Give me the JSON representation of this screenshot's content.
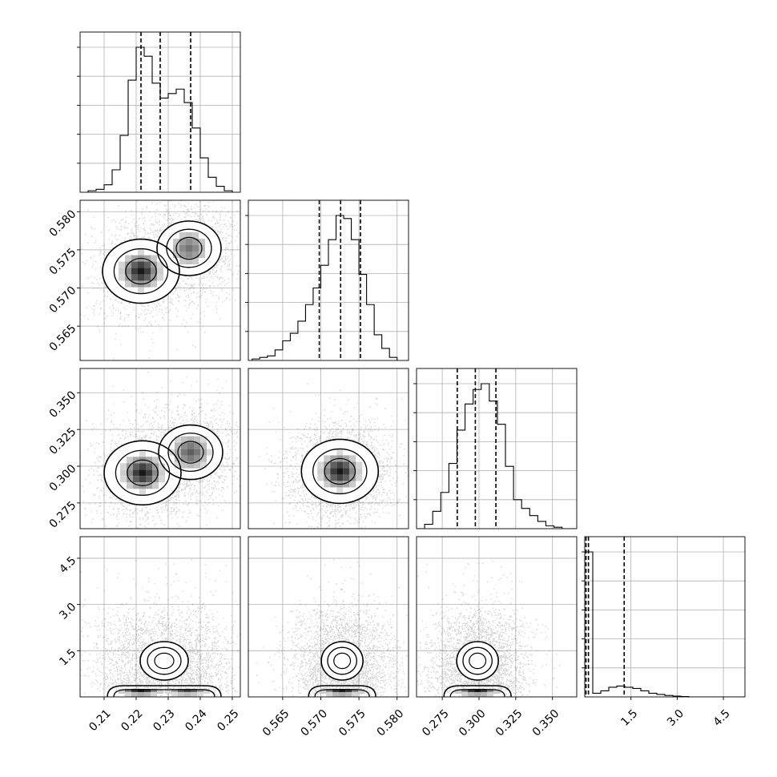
{
  "chart_data": {
    "type": "corner",
    "parameters": [
      {
        "index": 0,
        "range": [
          0.2025,
          0.2525
        ],
        "ticks": [
          0.21,
          0.22,
          0.23,
          0.24,
          0.25
        ],
        "tick_labels": [
          "0.21",
          "0.22",
          "0.23",
          "0.24",
          "0.25"
        ],
        "quantiles": [
          0.2215,
          0.2275,
          0.237
        ]
      },
      {
        "index": 1,
        "range": [
          0.5605,
          0.5815
        ],
        "ticks": [
          0.565,
          0.57,
          0.575,
          0.58
        ],
        "tick_labels": [
          "0.565",
          "0.570",
          "0.575",
          "0.580"
        ],
        "quantiles": [
          0.5698,
          0.5726,
          0.5752
        ]
      },
      {
        "index": 2,
        "range": [
          0.2575,
          0.3665
        ],
        "ticks": [
          0.275,
          0.3,
          0.325,
          0.35
        ],
        "tick_labels": [
          "0.275",
          "0.300",
          "0.325",
          "0.350"
        ],
        "quantiles": [
          0.2852,
          0.2975,
          0.3115
        ]
      },
      {
        "index": 3,
        "range": [
          0.0,
          5.2
        ],
        "ticks": [
          1.5,
          3.0,
          4.5
        ],
        "tick_labels": [
          "1.5",
          "3.0",
          "4.5"
        ],
        "quantiles": [
          0.04,
          0.12,
          1.28
        ]
      }
    ],
    "histograms": [
      {
        "param": 0,
        "bin_edges": [
          0.205,
          0.2075,
          0.21,
          0.2125,
          0.215,
          0.2175,
          0.22,
          0.2225,
          0.225,
          0.2275,
          0.23,
          0.2325,
          0.235,
          0.2375,
          0.24,
          0.2425,
          0.245,
          0.2475,
          0.25
        ],
        "counts": [
          1,
          2,
          5,
          15,
          38,
          75,
          97,
          91,
          73,
          63,
          66,
          69,
          60,
          43,
          23,
          10,
          4,
          1
        ]
      },
      {
        "param": 1,
        "bin_edges": [
          0.561,
          0.562,
          0.563,
          0.564,
          0.565,
          0.566,
          0.567,
          0.568,
          0.569,
          0.57,
          0.571,
          0.572,
          0.573,
          0.574,
          0.575,
          0.576,
          0.577,
          0.578,
          0.579,
          0.58
        ],
        "counts": [
          1,
          2,
          3,
          7,
          13,
          18,
          26,
          37,
          48,
          63,
          80,
          96,
          94,
          80,
          57,
          37,
          17,
          8,
          2
        ]
      },
      {
        "param": 2,
        "bin_edges": [
          0.2575,
          0.263,
          0.2685,
          0.274,
          0.2795,
          0.285,
          0.2905,
          0.296,
          0.3015,
          0.307,
          0.3125,
          0.318,
          0.3235,
          0.329,
          0.3345,
          0.34,
          0.3455,
          0.351,
          0.3565,
          0.362,
          0.3665
        ],
        "counts": [
          0,
          3,
          12,
          25,
          45,
          68,
          86,
          96,
          100,
          88,
          72,
          43,
          20,
          14,
          9,
          5,
          2,
          1,
          0,
          0
        ]
      },
      {
        "param": 3,
        "bin_edges": [
          0.0,
          0.26,
          0.52,
          0.78,
          1.04,
          1.3,
          1.56,
          1.82,
          2.08,
          2.34,
          2.6,
          2.86,
          3.12,
          3.38,
          3.64,
          3.9,
          4.16,
          4.42,
          4.68,
          4.94,
          5.2
        ],
        "counts": [
          120,
          3,
          5,
          8,
          9,
          8,
          7,
          5,
          3,
          2,
          1.2,
          0.6,
          0.3,
          0,
          0,
          0,
          0,
          0,
          0,
          0
        ]
      }
    ],
    "joint_modes": [
      {
        "x_param": 0,
        "y_param": 1,
        "modes": [
          [
            0.2215,
            0.5722,
            1.0
          ],
          [
            0.2365,
            0.5752,
            0.6
          ]
        ]
      },
      {
        "x_param": 0,
        "y_param": 2,
        "modes": [
          [
            0.222,
            0.2955,
            1.0
          ],
          [
            0.237,
            0.3095,
            0.7
          ]
        ]
      },
      {
        "x_param": 1,
        "y_param": 2,
        "modes": [
          [
            0.5725,
            0.2965,
            1.0
          ]
        ]
      },
      {
        "x_param": 0,
        "y_param": 3,
        "modes": [
          [
            0.2215,
            0.1,
            1.0
          ],
          [
            0.236,
            0.1,
            0.8
          ]
        ]
      },
      {
        "x_param": 1,
        "y_param": 3,
        "modes": [
          [
            0.5728,
            0.1,
            1.0
          ]
        ]
      },
      {
        "x_param": 2,
        "y_param": 3,
        "modes": [
          [
            0.299,
            0.1,
            1.0
          ]
        ]
      }
    ],
    "grid": true,
    "contour_levels": 3,
    "quantile_line_style": "dashed"
  }
}
